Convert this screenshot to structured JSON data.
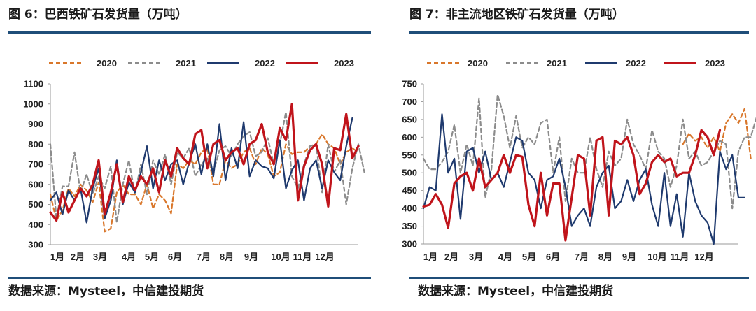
{
  "left_panel": {
    "title": "图 6：巴西铁矿石发货量（万吨）",
    "source": "数据来源：Mysteel，中信建投期货"
  },
  "right_panel": {
    "title": "图 7：非主流地区铁矿石发货量（万吨）",
    "source": "数据来源：Mysteel，中信建投期货"
  },
  "chart_data": [
    {
      "type": "line",
      "title": "巴西铁矿石发货量（万吨）",
      "xlabel": "",
      "ylabel": "",
      "ylim": [
        300,
        1100
      ],
      "yticks": [
        "300",
        "400",
        "500",
        "600",
        "700",
        "800",
        "900",
        "1000",
        "1100"
      ],
      "xticks": [
        "1月",
        "2月",
        "3月",
        "4月",
        "5月",
        "6月",
        "7月",
        "8月",
        "9月",
        "10月",
        "11月",
        "12月"
      ],
      "legend_position": "top",
      "x_max": 52,
      "series": [
        {
          "name": "2020",
          "color": "#d9772b",
          "dash": "6,4",
          "width": 2.2,
          "values": [
            550,
            420,
            470,
            580,
            540,
            600,
            570,
            510,
            610,
            365,
            380,
            560,
            600,
            550,
            550,
            500,
            600,
            480,
            550,
            520,
            455,
            700,
            680,
            720,
            700,
            760,
            780,
            600,
            600,
            720,
            680,
            700,
            760,
            780,
            700,
            780,
            750,
            640,
            660,
            800,
            750,
            760,
            760,
            790,
            800,
            850,
            800,
            780,
            700,
            760,
            780,
            760
          ]
        },
        {
          "name": "2021",
          "color": "#8c8c8c",
          "dash": "6,4",
          "width": 2.2,
          "values": [
            800,
            430,
            590,
            590,
            760,
            560,
            650,
            550,
            640,
            580,
            690,
            410,
            600,
            720,
            550,
            700,
            550,
            720,
            650,
            750,
            600,
            760,
            730,
            780,
            640,
            700,
            730,
            660,
            770,
            790,
            740,
            800,
            840,
            860,
            740,
            760,
            830,
            700,
            800,
            960,
            640,
            580,
            700,
            790,
            800,
            560,
            800,
            660,
            720,
            500,
            680,
            800,
            660
          ]
        },
        {
          "name": "2022",
          "color": "#1f3a6e",
          "dash": "",
          "width": 2.2,
          "values": [
            520,
            560,
            450,
            570,
            520,
            580,
            410,
            580,
            680,
            430,
            520,
            720,
            500,
            610,
            560,
            660,
            790,
            580,
            720,
            620,
            700,
            720,
            600,
            710,
            800,
            650,
            800,
            640,
            900,
            620,
            780,
            680,
            910,
            640,
            720,
            690,
            680,
            630,
            820,
            580,
            670,
            720,
            520,
            680,
            720,
            580,
            720,
            660,
            620,
            790,
            930
          ]
        },
        {
          "name": "2023",
          "color": "#c0141b",
          "dash": "",
          "width": 3.2,
          "values": [
            460,
            420,
            560,
            460,
            520,
            580,
            540,
            600,
            720,
            450,
            560,
            700,
            510,
            640,
            570,
            640,
            600,
            680,
            560,
            720,
            640,
            780,
            730,
            700,
            850,
            870,
            680,
            800,
            820,
            720,
            760,
            780,
            700,
            800,
            820,
            900,
            760,
            700,
            880,
            820,
            1000,
            520,
            690,
            770,
            800,
            700,
            490,
            780,
            770,
            950,
            730,
            790
          ]
        }
      ]
    },
    {
      "type": "line",
      "title": "非主流地区铁矿石发货量（万吨）",
      "xlabel": "",
      "ylabel": "",
      "ylim": [
        300,
        750
      ],
      "yticks": [
        "300",
        "350",
        "400",
        "450",
        "500",
        "550",
        "600",
        "650",
        "700",
        "750"
      ],
      "xticks": [
        "1月",
        "2月",
        "3月",
        "4月",
        "5月",
        "6月",
        "7月",
        "8月",
        "9月",
        "10月",
        "11月",
        "12月"
      ],
      "legend_position": "top",
      "x_max": 52,
      "series": [
        {
          "name": "2020",
          "color": "#d9772b",
          "dash": "6,4",
          "width": 2.2,
          "values": [
            null,
            null,
            null,
            null,
            null,
            null,
            null,
            null,
            null,
            null,
            null,
            null,
            null,
            null,
            null,
            null,
            null,
            null,
            null,
            null,
            null,
            null,
            null,
            null,
            null,
            null,
            null,
            null,
            null,
            null,
            null,
            null,
            null,
            null,
            null,
            null,
            null,
            null,
            null,
            null,
            null,
            null,
            580,
            610,
            590,
            600,
            570,
            600,
            560,
            640,
            665,
            640,
            680,
            540
          ]
        },
        {
          "name": "2021",
          "color": "#8c8c8c",
          "dash": "6,4",
          "width": 2.2,
          "values": [
            540,
            510,
            510,
            530,
            560,
            635,
            500,
            580,
            520,
            710,
            430,
            510,
            720,
            660,
            570,
            660,
            570,
            600,
            580,
            640,
            650,
            500,
            600,
            420,
            540,
            500,
            500,
            600,
            510,
            460,
            560,
            520,
            540,
            650,
            580,
            550,
            510,
            620,
            560,
            540,
            460,
            520,
            650,
            540,
            560,
            520,
            530,
            560,
            590,
            580,
            400,
            560,
            600,
            600,
            660,
            540
          ]
        },
        {
          "name": "2022",
          "color": "#1f3a6e",
          "dash": "",
          "width": 2.2,
          "values": [
            400,
            460,
            450,
            665,
            500,
            540,
            370,
            560,
            570,
            500,
            560,
            480,
            500,
            460,
            530,
            600,
            590,
            500,
            480,
            400,
            480,
            490,
            540,
            460,
            350,
            380,
            400,
            350,
            460,
            500,
            520,
            400,
            420,
            480,
            420,
            480,
            510,
            410,
            350,
            500,
            350,
            440,
            320,
            500,
            420,
            380,
            360,
            300,
            560,
            510,
            550,
            430,
            430
          ]
        },
        {
          "name": "2023",
          "color": "#c0141b",
          "dash": "",
          "width": 3.2,
          "values": [
            405,
            410,
            440,
            410,
            345,
            470,
            490,
            500,
            450,
            540,
            460,
            480,
            500,
            550,
            500,
            550,
            545,
            410,
            350,
            500,
            380,
            470,
            470,
            310,
            430,
            550,
            540,
            380,
            590,
            600,
            380,
            590,
            580,
            600,
            550,
            440,
            470,
            530,
            550,
            530,
            540,
            490,
            500,
            500,
            550,
            620,
            600,
            550,
            620
          ]
        }
      ]
    }
  ]
}
